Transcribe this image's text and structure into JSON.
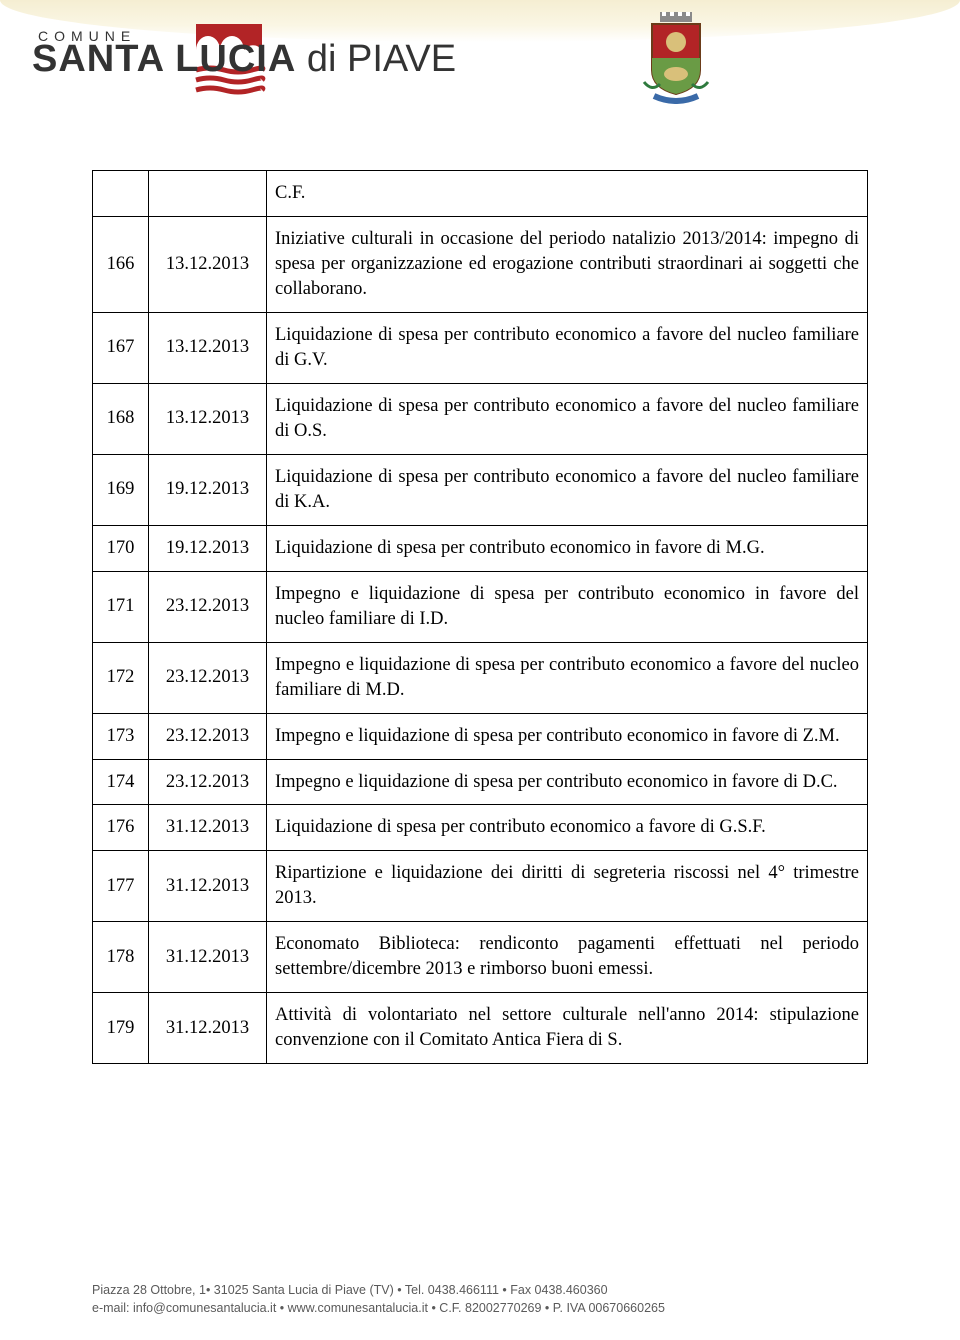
{
  "header": {
    "small": "COMUNE",
    "name_bold": "SANTA LUCIA",
    "name_light": " di PIAVE"
  },
  "table": {
    "rows": [
      {
        "num": "",
        "date": "",
        "desc": "C.F."
      },
      {
        "num": "166",
        "date": "13.12.2013",
        "desc": "Iniziative culturali in occasione del periodo natalizio 2013/2014: impegno di spesa per organizzazione ed erogazione contributi straordinari ai soggetti che collaborano."
      },
      {
        "num": "167",
        "date": "13.12.2013",
        "desc": "Liquidazione di spesa per contributo economico a favore del nucleo familiare di G.V."
      },
      {
        "num": "168",
        "date": "13.12.2013",
        "desc": "Liquidazione di spesa per contributo economico a favore del nucleo familiare di O.S."
      },
      {
        "num": "169",
        "date": "19.12.2013",
        "desc": "Liquidazione di spesa per contributo economico a favore del nucleo familiare di K.A."
      },
      {
        "num": "170",
        "date": "19.12.2013",
        "desc": "Liquidazione di spesa per contributo economico in favore di M.G."
      },
      {
        "num": "171",
        "date": "23.12.2013",
        "desc": "Impegno e liquidazione di spesa per contributo economico in favore del nucleo familiare di I.D."
      },
      {
        "num": "172",
        "date": "23.12.2013",
        "desc": "Impegno e liquidazione di spesa per contributo economico a favore del nucleo familiare di M.D."
      },
      {
        "num": "173",
        "date": "23.12.2013",
        "desc": "Impegno e liquidazione di spesa per contributo economico in favore di Z.M."
      },
      {
        "num": "174",
        "date": "23.12.2013",
        "desc": "Impegno e liquidazione di spesa per contributo economico in favore di D.C."
      },
      {
        "num": "176",
        "date": "31.12.2013",
        "desc": "Liquidazione di spesa per contributo economico a favore di G.S.F."
      },
      {
        "num": "177",
        "date": "31.12.2013",
        "desc": "Ripartizione e liquidazione dei diritti di segreteria riscossi nel 4° trimestre 2013."
      },
      {
        "num": "178",
        "date": "31.12.2013",
        "desc": "Economato Biblioteca: rendiconto pagamenti effettuati nel periodo settembre/dicembre 2013 e rimborso buoni emessi."
      },
      {
        "num": "179",
        "date": "31.12.2013",
        "desc": "Attività di volontariato nel settore culturale nell'anno 2014: stipulazione convenzione con il Comitato Antica Fiera di S."
      }
    ]
  },
  "footer": {
    "line1": "Piazza 28 Ottobre, 1• 31025 Santa Lucia di Piave (TV) • Tel. 0438.466111 • Fax 0438.460360",
    "line2": "e-mail: info@comunesantalucia.it • www.comunesantalucia.it • C.F. 82002770269 • P. IVA 00670660265"
  },
  "colors": {
    "brand_red": "#b22426",
    "crest_green": "#6a9b45",
    "crest_blue": "#3a6aa8",
    "crest_gold": "#c9a94a"
  }
}
